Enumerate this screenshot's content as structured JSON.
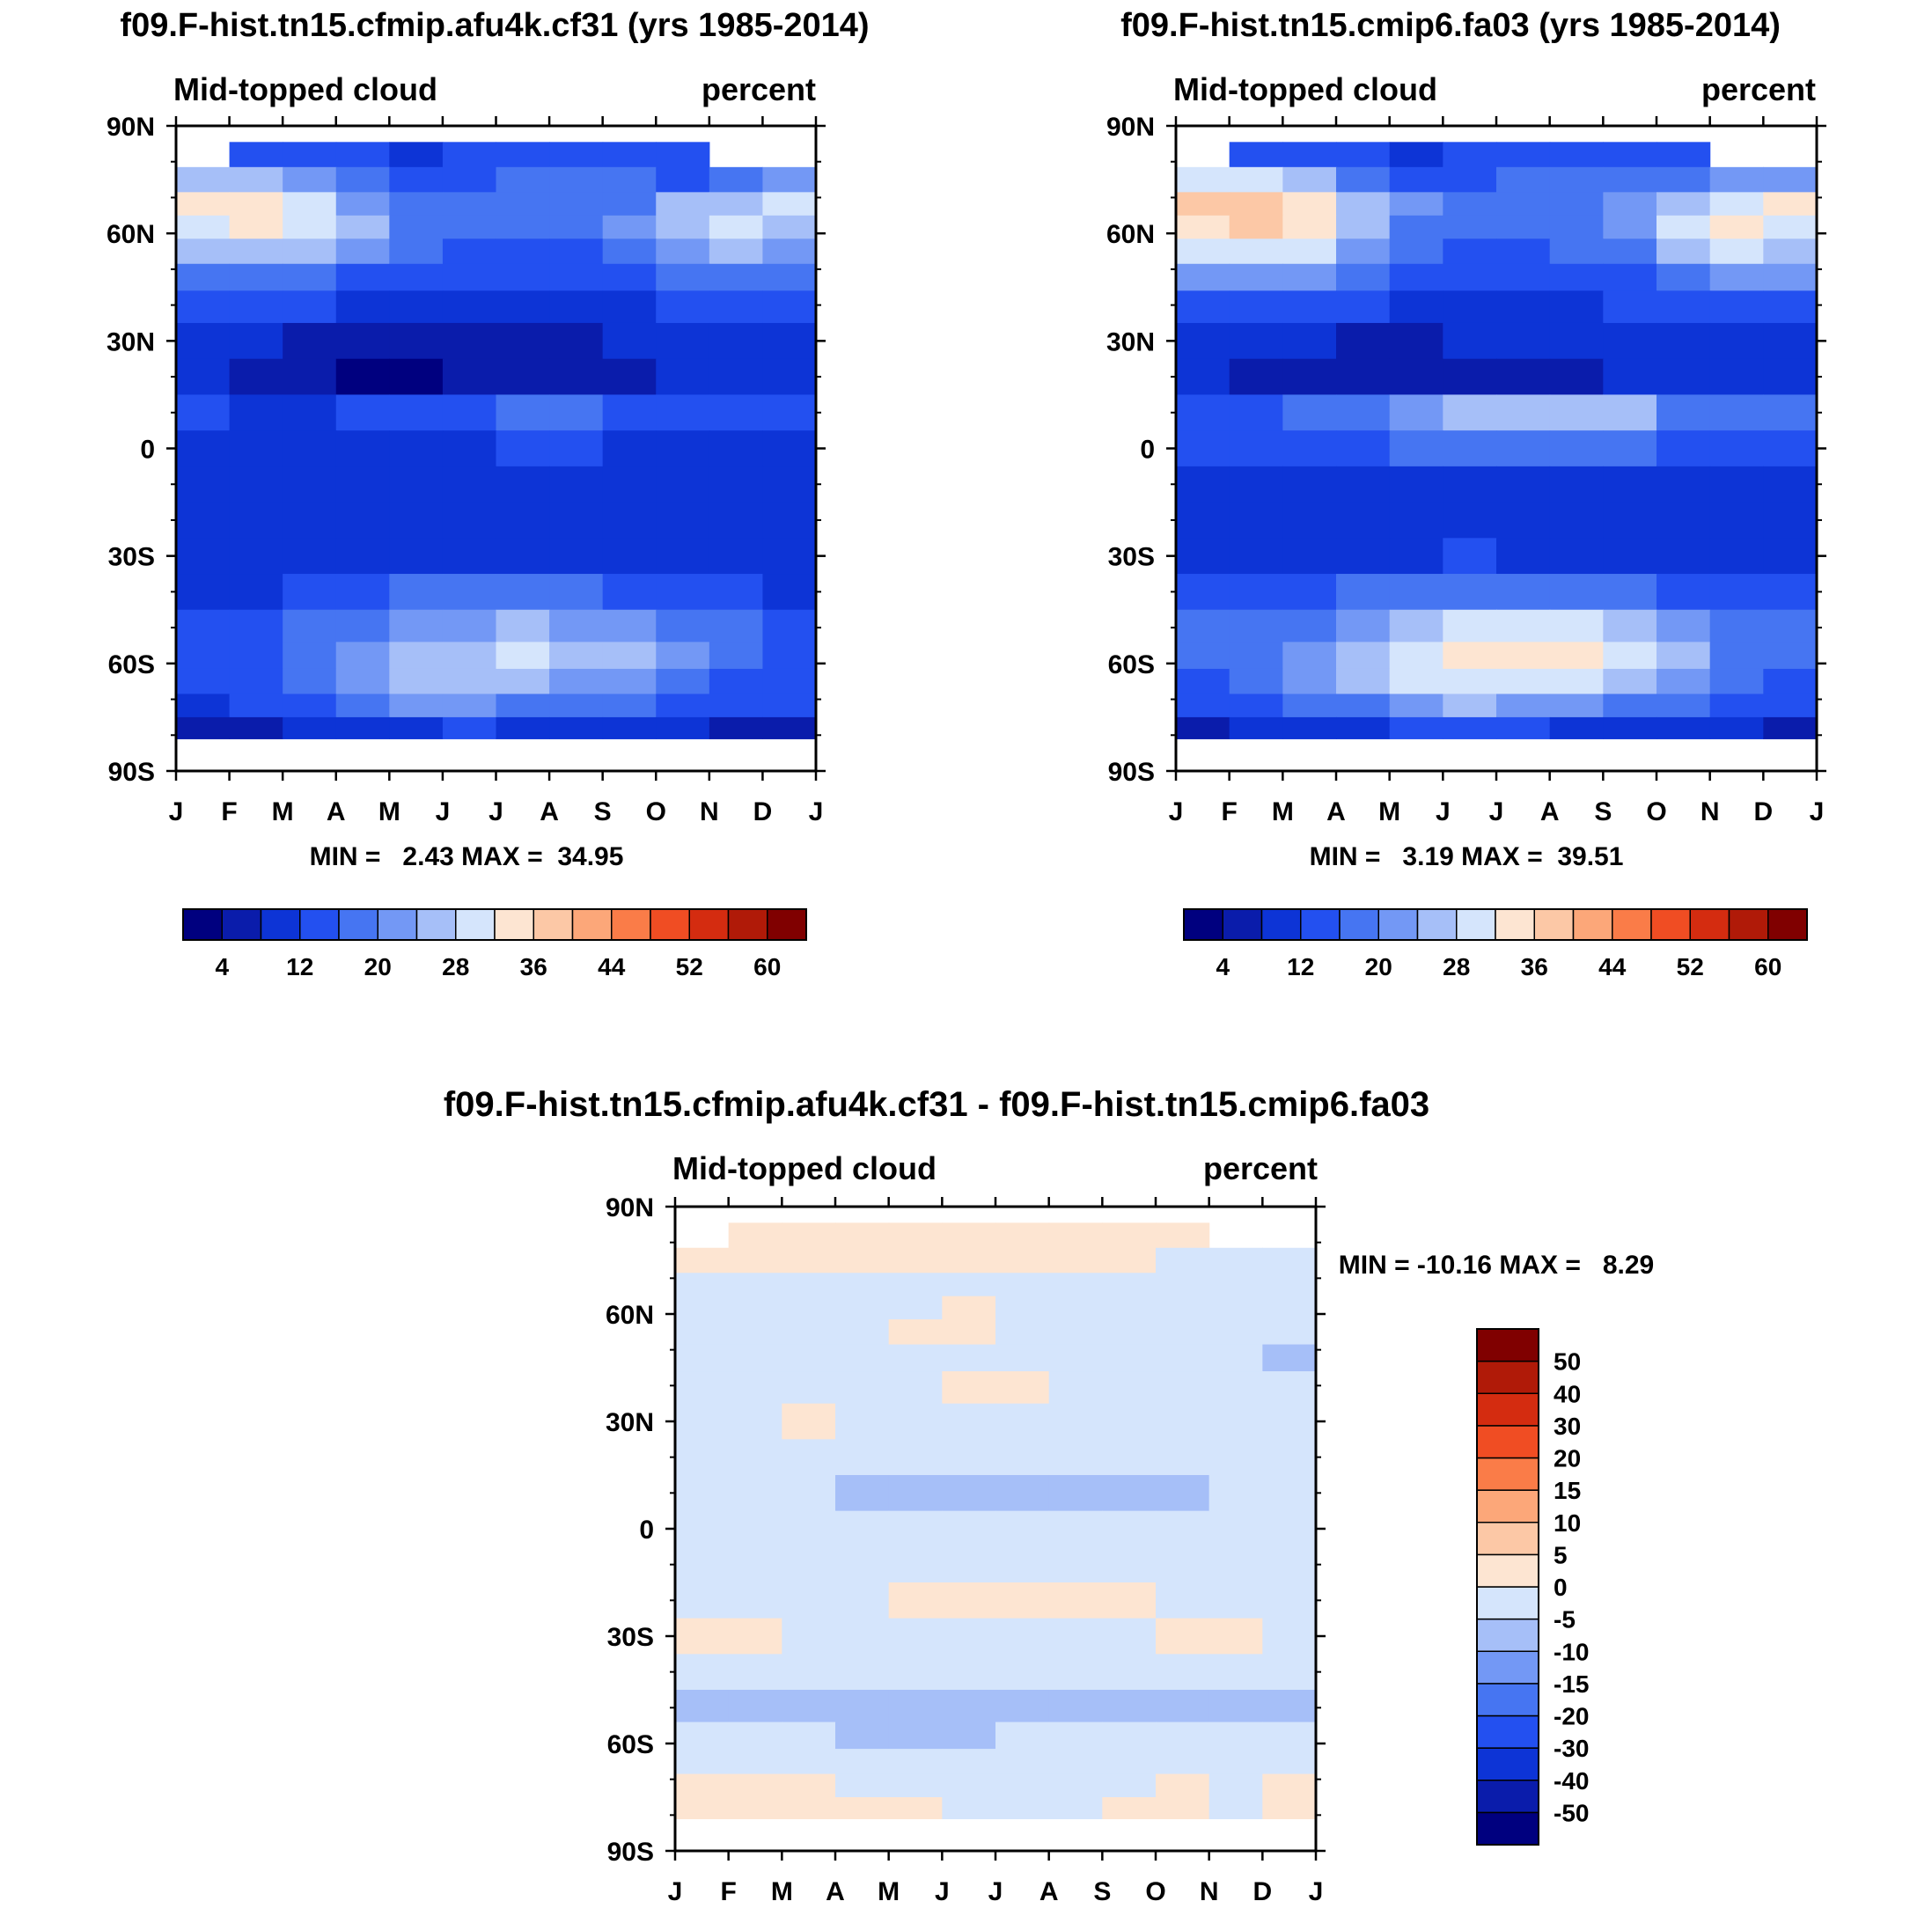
{
  "figure": {
    "panels": [
      {
        "title": "f09.F-hist.tn15.cfmip.afu4k.cf31 (yrs 1985-2014)",
        "variable": "Mid-topped cloud",
        "units": "percent",
        "stats": "MIN =   2.43 MAX =  34.95"
      },
      {
        "title": "f09.F-hist.tn15.cmip6.fa03 (yrs 1985-2014)",
        "variable": "Mid-topped cloud",
        "units": "percent",
        "stats": "MIN =   3.19 MAX =  39.51"
      },
      {
        "title": "f09.F-hist.tn15.cfmip.afu4k.cf31 - f09.F-hist.tn15.cmip6.fa03",
        "variable": "Mid-topped cloud",
        "units": "percent",
        "stats": "MIN = -10.16 MAX =   8.29"
      }
    ]
  },
  "chart_data": [
    {
      "type": "heatmap",
      "title": "f09.F-hist.tn15.cfmip.afu4k.cf31 (yrs 1985-2014)",
      "subtitle_left": "Mid-topped cloud",
      "subtitle_right": "percent",
      "x_tick_labels": [
        "J",
        "F",
        "M",
        "A",
        "M",
        "J",
        "J",
        "A",
        "S",
        "O",
        "N",
        "D",
        "J"
      ],
      "y_tick_labels": [
        "90N",
        "60N",
        "30N",
        "0",
        "30S",
        "60S",
        "90S"
      ],
      "y_range": [
        -90,
        90
      ],
      "latitudes": [
        82,
        75,
        68,
        62,
        55,
        48,
        40,
        30,
        20,
        10,
        0,
        -10,
        -20,
        -30,
        -40,
        -50,
        -58,
        -65,
        -72,
        -78
      ],
      "months": [
        "J",
        "F",
        "M",
        "A",
        "M",
        "J",
        "J",
        "A",
        "S",
        "O",
        "N",
        "D"
      ],
      "values": [
        [
          null,
          14,
          13,
          13,
          11,
          12,
          14,
          15,
          14,
          13,
          null,
          null
        ],
        [
          27,
          26,
          22,
          17,
          14,
          14,
          17,
          18,
          16,
          14,
          17,
          20
        ],
        [
          33,
          32,
          29,
          22,
          19,
          17,
          16,
          17,
          19,
          24,
          27,
          29
        ],
        [
          30,
          32,
          30,
          24,
          18,
          16,
          16,
          17,
          20,
          27,
          29,
          27
        ],
        [
          24,
          26,
          25,
          20,
          16,
          14,
          14,
          15,
          18,
          23,
          25,
          23
        ],
        [
          18,
          19,
          18,
          15,
          13,
          12,
          12,
          13,
          14,
          17,
          18,
          18
        ],
        [
          13,
          13,
          12,
          11,
          10,
          10,
          10,
          10,
          11,
          12,
          13,
          13
        ],
        [
          9,
          8,
          7,
          6,
          6,
          7,
          7,
          7,
          8,
          9,
          9,
          9
        ],
        [
          8,
          6,
          4,
          3,
          3,
          4,
          4,
          5,
          6,
          8,
          8,
          8
        ],
        [
          12,
          11,
          11,
          12,
          14,
          15,
          17,
          17,
          15,
          13,
          12,
          12
        ],
        [
          11,
          10,
          10,
          10,
          11,
          11,
          12,
          12,
          11,
          11,
          10,
          11
        ],
        [
          8,
          8,
          8,
          8,
          8,
          8,
          8,
          8,
          8,
          8,
          8,
          8
        ],
        [
          8,
          8,
          8,
          8,
          8,
          8,
          8,
          8,
          8,
          8,
          8,
          8
        ],
        [
          9,
          9,
          9,
          10,
          11,
          11,
          10,
          10,
          10,
          9,
          9,
          9
        ],
        [
          11,
          11,
          12,
          14,
          16,
          17,
          17,
          17,
          15,
          13,
          12,
          11
        ],
        [
          15,
          15,
          16,
          18,
          21,
          23,
          24,
          23,
          21,
          18,
          16,
          15
        ],
        [
          13,
          14,
          17,
          20,
          24,
          26,
          28,
          27,
          24,
          20,
          16,
          14
        ],
        [
          12,
          13,
          16,
          20,
          24,
          25,
          24,
          23,
          21,
          18,
          15,
          13
        ],
        [
          10,
          12,
          14,
          16,
          20,
          21,
          19,
          18,
          17,
          15,
          13,
          12
        ],
        [
          6,
          7,
          8,
          9,
          11,
          12,
          11,
          10,
          9,
          8,
          7,
          6
        ]
      ],
      "levels": [
        4,
        8,
        12,
        16,
        20,
        24,
        28,
        32,
        36,
        40,
        44,
        48,
        52,
        56,
        60
      ],
      "colorbar_labels": [
        "4",
        "12",
        "20",
        "28",
        "36",
        "44",
        "52",
        "60"
      ],
      "colors": [
        "#00007f",
        "#0a1cab",
        "#0d34d6",
        "#2350f0",
        "#4675f2",
        "#7398f5",
        "#a6bff8",
        "#d5e5fc",
        "#fde5d2",
        "#fcc8a6",
        "#fca779",
        "#fa7c48",
        "#f04d23",
        "#d42c10",
        "#b01a08",
        "#800000"
      ],
      "min": 2.43,
      "max": 34.95
    },
    {
      "type": "heatmap",
      "title": "f09.F-hist.tn15.cmip6.fa03 (yrs 1985-2014)",
      "subtitle_left": "Mid-topped cloud",
      "subtitle_right": "percent",
      "x_tick_labels": [
        "J",
        "F",
        "M",
        "A",
        "M",
        "J",
        "J",
        "A",
        "S",
        "O",
        "N",
        "D",
        "J"
      ],
      "y_tick_labels": [
        "90N",
        "60N",
        "30N",
        "0",
        "30S",
        "60S",
        "90S"
      ],
      "y_range": [
        -90,
        90
      ],
      "latitudes": [
        82,
        75,
        68,
        62,
        55,
        48,
        40,
        30,
        20,
        10,
        0,
        -10,
        -20,
        -30,
        -40,
        -50,
        -58,
        -65,
        -72,
        -78
      ],
      "months": [
        "J",
        "F",
        "M",
        "A",
        "M",
        "J",
        "J",
        "A",
        "S",
        "O",
        "N",
        "D"
      ],
      "values": [
        [
          null,
          15,
          14,
          13,
          11,
          12,
          13,
          14,
          14,
          14,
          null,
          null
        ],
        [
          30,
          30,
          26,
          19,
          15,
          14,
          17,
          18,
          18,
          17,
          20,
          22
        ],
        [
          37,
          36,
          33,
          24,
          20,
          18,
          17,
          18,
          21,
          27,
          31,
          33
        ],
        [
          34,
          36,
          34,
          26,
          19,
          17,
          17,
          18,
          22,
          30,
          33,
          31
        ],
        [
          28,
          30,
          29,
          22,
          17,
          15,
          15,
          16,
          19,
          26,
          29,
          27
        ],
        [
          20,
          21,
          20,
          17,
          14,
          13,
          13,
          14,
          15,
          19,
          20,
          20
        ],
        [
          14,
          14,
          13,
          12,
          11,
          11,
          11,
          11,
          12,
          13,
          14,
          14
        ],
        [
          10,
          9,
          8,
          7,
          7,
          8,
          8,
          8,
          9,
          10,
          10,
          10
        ],
        [
          9,
          6,
          4,
          4,
          4,
          5,
          6,
          7,
          8,
          9,
          9,
          9
        ],
        [
          15,
          15,
          16,
          19,
          22,
          25,
          27,
          27,
          24,
          19,
          17,
          16
        ],
        [
          13,
          13,
          14,
          15,
          16,
          17,
          18,
          18,
          16,
          15,
          14,
          13
        ],
        [
          10,
          10,
          10,
          10,
          11,
          11,
          11,
          11,
          11,
          10,
          10,
          10
        ],
        [
          9,
          9,
          9,
          9,
          9,
          9,
          9,
          9,
          9,
          9,
          9,
          9
        ],
        [
          9,
          9,
          9,
          10,
          11,
          12,
          11,
          11,
          10,
          9,
          9,
          9
        ],
        [
          12,
          13,
          14,
          16,
          18,
          19,
          19,
          19,
          17,
          15,
          13,
          12
        ],
        [
          18,
          18,
          19,
          22,
          25,
          28,
          29,
          28,
          25,
          21,
          19,
          18
        ],
        [
          16,
          18,
          22,
          26,
          30,
          32,
          33,
          32,
          29,
          24,
          19,
          17
        ],
        [
          14,
          16,
          20,
          24,
          28,
          30,
          29,
          28,
          25,
          21,
          17,
          15
        ],
        [
          12,
          14,
          16,
          19,
          23,
          24,
          22,
          21,
          19,
          17,
          15,
          13
        ],
        [
          7,
          8,
          9,
          11,
          13,
          13,
          12,
          11,
          10,
          9,
          8,
          7
        ]
      ],
      "levels": [
        4,
        8,
        12,
        16,
        20,
        24,
        28,
        32,
        36,
        40,
        44,
        48,
        52,
        56,
        60
      ],
      "colorbar_labels": [
        "4",
        "12",
        "20",
        "28",
        "36",
        "44",
        "52",
        "60"
      ],
      "colors": [
        "#00007f",
        "#0a1cab",
        "#0d34d6",
        "#2350f0",
        "#4675f2",
        "#7398f5",
        "#a6bff8",
        "#d5e5fc",
        "#fde5d2",
        "#fcc8a6",
        "#fca779",
        "#fa7c48",
        "#f04d23",
        "#d42c10",
        "#b01a08",
        "#800000"
      ],
      "min": 3.19,
      "max": 39.51
    },
    {
      "type": "heatmap",
      "title": "f09.F-hist.tn15.cfmip.afu4k.cf31 - f09.F-hist.tn15.cmip6.fa03",
      "subtitle_left": "Mid-topped cloud",
      "subtitle_right": "percent",
      "x_tick_labels": [
        "J",
        "F",
        "M",
        "A",
        "M",
        "J",
        "J",
        "A",
        "S",
        "O",
        "N",
        "D",
        "J"
      ],
      "y_tick_labels": [
        "90N",
        "60N",
        "30N",
        "0",
        "30S",
        "60S",
        "90S"
      ],
      "y_range": [
        -90,
        90
      ],
      "latitudes": [
        82,
        75,
        68,
        62,
        55,
        48,
        40,
        30,
        20,
        10,
        0,
        -10,
        -20,
        -30,
        -40,
        -50,
        -58,
        -65,
        -72,
        -78
      ],
      "months": [
        "J",
        "F",
        "M",
        "A",
        "M",
        "J",
        "J",
        "A",
        "S",
        "O",
        "N",
        "D"
      ],
      "values": [
        [
          null,
          2,
          1,
          2,
          3,
          2,
          4,
          3,
          2,
          1,
          null,
          null
        ],
        [
          1,
          1,
          2,
          1,
          2,
          1,
          2,
          1,
          1,
          -1,
          -1,
          -2
        ],
        [
          -3,
          -3,
          -3,
          -2,
          -1,
          -2,
          -1,
          -1,
          -2,
          -3,
          -4,
          -4
        ],
        [
          -3,
          -3,
          -3,
          -2,
          -1,
          1,
          -1,
          -1,
          -2,
          -3,
          -4,
          -4
        ],
        [
          -5,
          -4,
          -4,
          -2,
          1,
          1,
          -1,
          -1,
          -2,
          -4,
          -5,
          -5
        ],
        [
          -5,
          -3,
          -3,
          -2,
          -1,
          -1,
          -1,
          -1,
          -2,
          -3,
          -5,
          -6
        ],
        [
          -2,
          -2,
          -2,
          -1,
          -1,
          1,
          1,
          -1,
          -1,
          -2,
          -3,
          -3
        ],
        [
          -1,
          -1,
          1,
          -1,
          -1,
          -1,
          -1,
          -1,
          -1,
          -1,
          -1,
          -1
        ],
        [
          -1,
          -1,
          -1,
          -1,
          -1,
          -1,
          -1,
          -1,
          -1,
          -1,
          -1,
          -1
        ],
        [
          -5,
          -5,
          -5,
          -6,
          -7,
          -8,
          -8,
          -8,
          -7,
          -6,
          -5,
          -5
        ],
        [
          -2,
          -2,
          -3,
          -5,
          -4,
          -3,
          -3,
          -3,
          -3,
          -3,
          -2,
          -2
        ],
        [
          -1,
          -1,
          -1,
          -1,
          -1,
          -1,
          -1,
          -1,
          -1,
          -1,
          -1,
          -1
        ],
        [
          -1,
          -1,
          -1,
          -1,
          1,
          1,
          1,
          1,
          1,
          -1,
          -1,
          -1
        ],
        [
          1,
          1,
          -1,
          -1,
          -1,
          -1,
          -1,
          -1,
          -1,
          1,
          1,
          -1
        ],
        [
          -1,
          -1,
          -2,
          -2,
          -2,
          -2,
          -2,
          -2,
          -2,
          -1,
          -1,
          -1
        ],
        [
          -6,
          -6,
          -6,
          -6,
          -6,
          -6,
          -6,
          -6,
          -6,
          -6,
          -6,
          -6
        ],
        [
          -3,
          -4,
          -5,
          -6,
          -6,
          -6,
          -5,
          -5,
          -5,
          -4,
          -3,
          -3
        ],
        [
          -2,
          -3,
          -4,
          -4,
          -4,
          -5,
          -5,
          -5,
          -4,
          -3,
          -2,
          -2
        ],
        [
          1,
          1,
          1,
          -1,
          -1,
          -2,
          -1,
          -1,
          -1,
          1,
          -1,
          1
        ],
        [
          1,
          1,
          1,
          1,
          1,
          -1,
          -1,
          -1,
          1,
          1,
          -1,
          1
        ]
      ],
      "levels": [
        -50,
        -40,
        -30,
        -20,
        -15,
        -10,
        -5,
        0,
        5,
        10,
        15,
        20,
        30,
        40,
        50
      ],
      "colorbar_labels": [
        "50",
        "40",
        "30",
        "20",
        "15",
        "10",
        "5",
        "0",
        "-5",
        "-10",
        "-15",
        "-20",
        "-30",
        "-40",
        "-50"
      ],
      "colors": [
        "#00007f",
        "#0a1cab",
        "#0d34d6",
        "#2350f0",
        "#4675f2",
        "#7398f5",
        "#a6bff8",
        "#d5e5fc",
        "#fde5d2",
        "#fcc8a6",
        "#fca779",
        "#fa7c48",
        "#f04d23",
        "#d42c10",
        "#b01a08",
        "#800000"
      ],
      "min": -10.16,
      "max": 8.29
    }
  ]
}
